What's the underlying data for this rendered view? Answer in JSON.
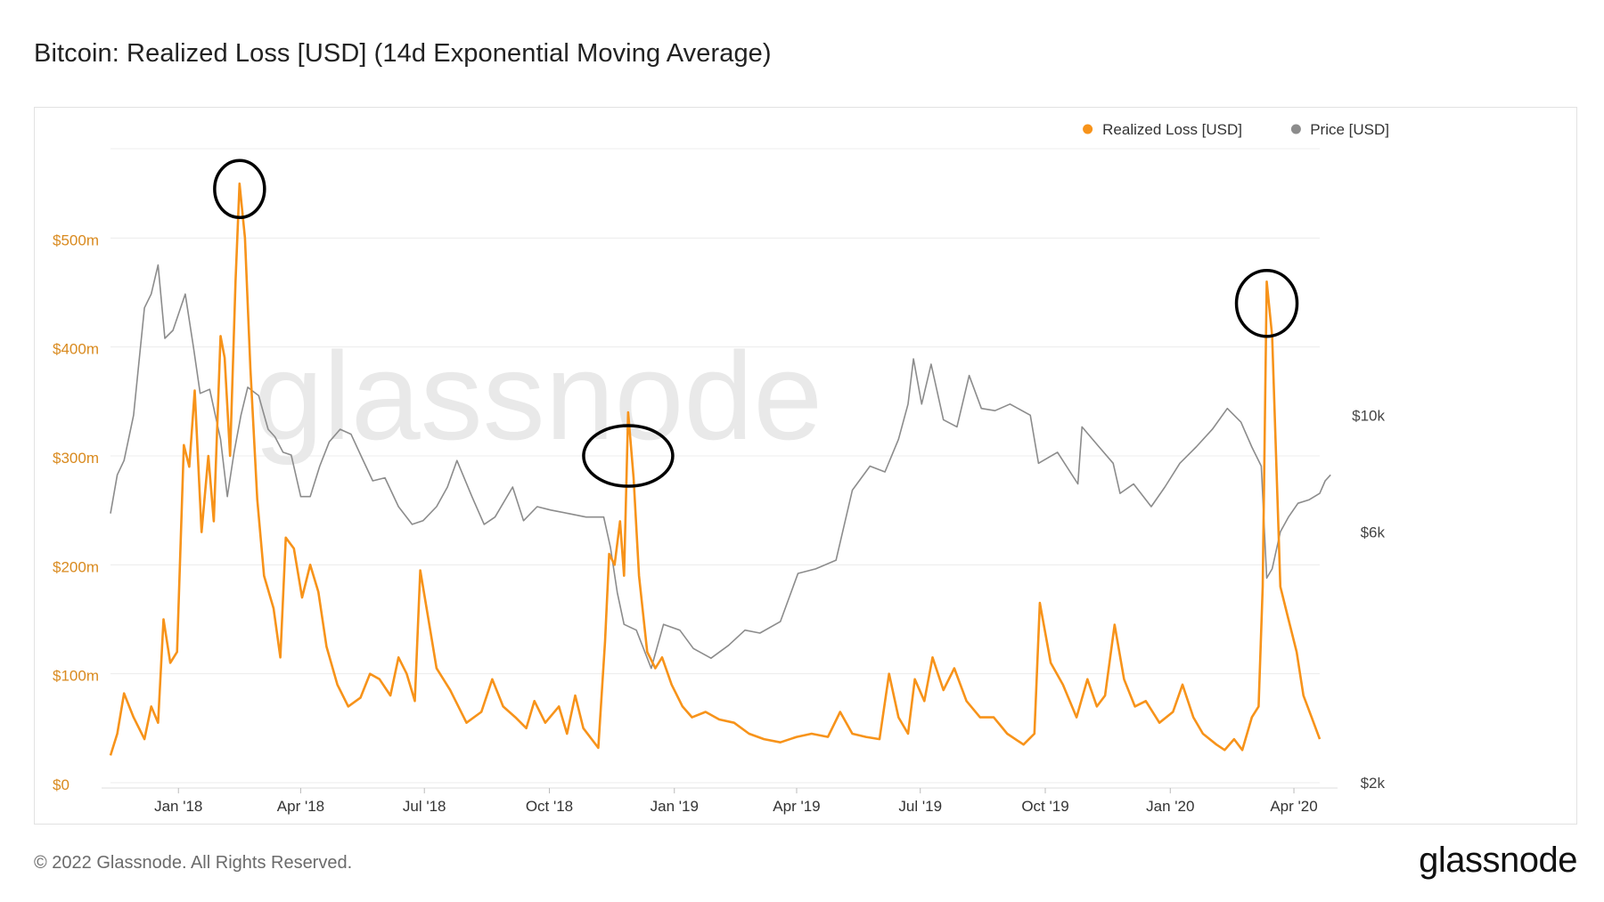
{
  "title": "Bitcoin: Realized Loss [USD] (14d Exponential Moving Average)",
  "footer": "© 2022 Glassnode. All Rights Reserved.",
  "brand": "glassnode",
  "watermark": "glassnode",
  "colors": {
    "loss": "#f7931a",
    "price": "#8c8c8c",
    "grid": "#ececec",
    "annotation": "#000000"
  },
  "chart_data": {
    "type": "line",
    "title": "Bitcoin: Realized Loss [USD] (14d Exponential Moving Average)",
    "x_ticks": [
      "Jan '18",
      "Apr '18",
      "Jul '18",
      "Oct '18",
      "Jan '19",
      "Apr '19",
      "Jul '19",
      "Oct '19",
      "Jan '20",
      "Apr '20"
    ],
    "x_range": [
      "2017-11-12",
      "2020-04-20"
    ],
    "y_left": {
      "label": "",
      "ticks": [
        "$0",
        "$100m",
        "$200m",
        "$300m",
        "$400m",
        "$500m"
      ],
      "range": [
        0,
        600
      ],
      "unit": "USD millions"
    },
    "y_right": {
      "label": "",
      "ticks": [
        "$2k",
        "$6k",
        "$10k"
      ],
      "scale": "log",
      "range": [
        2000,
        35000
      ],
      "unit": "USD"
    },
    "legend": {
      "position": "top-right",
      "entries": [
        "Realized Loss [USD]",
        "Price [USD]"
      ]
    },
    "grid": true,
    "series": [
      {
        "name": "Realized Loss [USD]",
        "axis": "left",
        "points": [
          [
            "2017-11-12",
            25
          ],
          [
            "2017-11-17",
            45
          ],
          [
            "2017-11-22",
            82
          ],
          [
            "2017-11-29",
            60
          ],
          [
            "2017-12-07",
            40
          ],
          [
            "2017-12-12",
            70
          ],
          [
            "2017-12-17",
            55
          ],
          [
            "2017-12-21",
            150
          ],
          [
            "2017-12-26",
            110
          ],
          [
            "2017-12-31",
            120
          ],
          [
            "2018-01-05",
            310
          ],
          [
            "2018-01-09",
            290
          ],
          [
            "2018-01-13",
            360
          ],
          [
            "2018-01-18",
            230
          ],
          [
            "2018-01-23",
            300
          ],
          [
            "2018-01-27",
            240
          ],
          [
            "2018-02-01",
            410
          ],
          [
            "2018-02-04",
            390
          ],
          [
            "2018-02-08",
            300
          ],
          [
            "2018-02-12",
            460
          ],
          [
            "2018-02-15",
            550
          ],
          [
            "2018-02-19",
            500
          ],
          [
            "2018-02-23",
            380
          ],
          [
            "2018-02-28",
            260
          ],
          [
            "2018-03-05",
            190
          ],
          [
            "2018-03-12",
            160
          ],
          [
            "2018-03-17",
            115
          ],
          [
            "2018-03-21",
            225
          ],
          [
            "2018-03-27",
            215
          ],
          [
            "2018-04-02",
            170
          ],
          [
            "2018-04-08",
            200
          ],
          [
            "2018-04-14",
            175
          ],
          [
            "2018-04-20",
            125
          ],
          [
            "2018-04-28",
            90
          ],
          [
            "2018-05-06",
            70
          ],
          [
            "2018-05-15",
            78
          ],
          [
            "2018-05-22",
            100
          ],
          [
            "2018-05-29",
            95
          ],
          [
            "2018-06-06",
            80
          ],
          [
            "2018-06-12",
            115
          ],
          [
            "2018-06-18",
            100
          ],
          [
            "2018-06-24",
            75
          ],
          [
            "2018-06-28",
            195
          ],
          [
            "2018-07-04",
            150
          ],
          [
            "2018-07-10",
            105
          ],
          [
            "2018-07-20",
            85
          ],
          [
            "2018-08-01",
            55
          ],
          [
            "2018-08-12",
            65
          ],
          [
            "2018-08-20",
            95
          ],
          [
            "2018-08-28",
            70
          ],
          [
            "2018-09-06",
            60
          ],
          [
            "2018-09-14",
            50
          ],
          [
            "2018-09-20",
            75
          ],
          [
            "2018-09-28",
            55
          ],
          [
            "2018-10-08",
            70
          ],
          [
            "2018-10-14",
            45
          ],
          [
            "2018-10-20",
            80
          ],
          [
            "2018-10-26",
            50
          ],
          [
            "2018-11-06",
            32
          ],
          [
            "2018-11-11",
            130
          ],
          [
            "2018-11-14",
            210
          ],
          [
            "2018-11-18",
            200
          ],
          [
            "2018-11-22",
            240
          ],
          [
            "2018-11-25",
            190
          ],
          [
            "2018-11-28",
            340
          ],
          [
            "2018-12-02",
            280
          ],
          [
            "2018-12-06",
            190
          ],
          [
            "2018-12-12",
            120
          ],
          [
            "2018-12-18",
            105
          ],
          [
            "2018-12-23",
            115
          ],
          [
            "2018-12-30",
            90
          ],
          [
            "2019-01-07",
            70
          ],
          [
            "2019-01-14",
            60
          ],
          [
            "2019-01-24",
            65
          ],
          [
            "2019-02-03",
            58
          ],
          [
            "2019-02-14",
            55
          ],
          [
            "2019-02-25",
            45
          ],
          [
            "2019-03-08",
            40
          ],
          [
            "2019-03-20",
            37
          ],
          [
            "2019-04-01",
            42
          ],
          [
            "2019-04-12",
            45
          ],
          [
            "2019-04-24",
            42
          ],
          [
            "2019-05-03",
            65
          ],
          [
            "2019-05-12",
            45
          ],
          [
            "2019-05-22",
            42
          ],
          [
            "2019-06-01",
            40
          ],
          [
            "2019-06-08",
            100
          ],
          [
            "2019-06-15",
            60
          ],
          [
            "2019-06-22",
            45
          ],
          [
            "2019-06-27",
            95
          ],
          [
            "2019-07-04",
            75
          ],
          [
            "2019-07-10",
            115
          ],
          [
            "2019-07-18",
            85
          ],
          [
            "2019-07-26",
            105
          ],
          [
            "2019-08-04",
            75
          ],
          [
            "2019-08-14",
            60
          ],
          [
            "2019-08-24",
            60
          ],
          [
            "2019-09-03",
            45
          ],
          [
            "2019-09-15",
            35
          ],
          [
            "2019-09-23",
            45
          ],
          [
            "2019-09-27",
            165
          ],
          [
            "2019-10-05",
            110
          ],
          [
            "2019-10-14",
            90
          ],
          [
            "2019-10-24",
            60
          ],
          [
            "2019-11-01",
            95
          ],
          [
            "2019-11-08",
            70
          ],
          [
            "2019-11-14",
            80
          ],
          [
            "2019-11-21",
            145
          ],
          [
            "2019-11-28",
            95
          ],
          [
            "2019-12-06",
            70
          ],
          [
            "2019-12-14",
            75
          ],
          [
            "2019-12-24",
            55
          ],
          [
            "2020-01-03",
            65
          ],
          [
            "2020-01-10",
            90
          ],
          [
            "2020-01-18",
            60
          ],
          [
            "2020-01-25",
            45
          ],
          [
            "2020-02-04",
            35
          ],
          [
            "2020-02-10",
            30
          ],
          [
            "2020-02-17",
            40
          ],
          [
            "2020-02-23",
            30
          ],
          [
            "2020-03-01",
            60
          ],
          [
            "2020-03-06",
            70
          ],
          [
            "2020-03-09",
            180
          ],
          [
            "2020-03-12",
            460
          ],
          [
            "2020-03-16",
            410
          ],
          [
            "2020-03-22",
            180
          ],
          [
            "2020-03-28",
            150
          ],
          [
            "2020-04-03",
            120
          ],
          [
            "2020-04-08",
            80
          ],
          [
            "2020-04-14",
            60
          ],
          [
            "2020-04-20",
            40
          ]
        ]
      },
      {
        "name": "Price [USD]",
        "axis": "right",
        "points": [
          [
            "2017-11-12",
            6500
          ],
          [
            "2017-11-17",
            7700
          ],
          [
            "2017-11-22",
            8200
          ],
          [
            "2017-11-29",
            10000
          ],
          [
            "2017-12-07",
            16000
          ],
          [
            "2017-12-12",
            17000
          ],
          [
            "2017-12-17",
            19300
          ],
          [
            "2017-12-22",
            14000
          ],
          [
            "2017-12-28",
            14500
          ],
          [
            "2018-01-06",
            17000
          ],
          [
            "2018-01-12",
            13500
          ],
          [
            "2018-01-17",
            11000
          ],
          [
            "2018-01-24",
            11200
          ],
          [
            "2018-02-01",
            9000
          ],
          [
            "2018-02-06",
            7000
          ],
          [
            "2018-02-11",
            8500
          ],
          [
            "2018-02-16",
            10000
          ],
          [
            "2018-02-21",
            11300
          ],
          [
            "2018-03-01",
            10900
          ],
          [
            "2018-03-08",
            9400
          ],
          [
            "2018-03-13",
            9100
          ],
          [
            "2018-03-19",
            8500
          ],
          [
            "2018-03-25",
            8400
          ],
          [
            "2018-04-01",
            7000
          ],
          [
            "2018-04-08",
            7000
          ],
          [
            "2018-04-15",
            8000
          ],
          [
            "2018-04-22",
            8900
          ],
          [
            "2018-04-30",
            9400
          ],
          [
            "2018-05-08",
            9200
          ],
          [
            "2018-05-16",
            8300
          ],
          [
            "2018-05-24",
            7500
          ],
          [
            "2018-06-02",
            7600
          ],
          [
            "2018-06-12",
            6700
          ],
          [
            "2018-06-22",
            6200
          ],
          [
            "2018-06-30",
            6300
          ],
          [
            "2018-07-10",
            6700
          ],
          [
            "2018-07-18",
            7300
          ],
          [
            "2018-07-25",
            8200
          ],
          [
            "2018-08-05",
            7000
          ],
          [
            "2018-08-14",
            6200
          ],
          [
            "2018-08-22",
            6400
          ],
          [
            "2018-09-04",
            7300
          ],
          [
            "2018-09-12",
            6300
          ],
          [
            "2018-09-22",
            6700
          ],
          [
            "2018-10-02",
            6600
          ],
          [
            "2018-10-15",
            6500
          ],
          [
            "2018-10-28",
            6400
          ],
          [
            "2018-11-10",
            6400
          ],
          [
            "2018-11-15",
            5600
          ],
          [
            "2018-11-20",
            4600
          ],
          [
            "2018-11-25",
            4000
          ],
          [
            "2018-12-04",
            3900
          ],
          [
            "2018-12-15",
            3300
          ],
          [
            "2018-12-24",
            4000
          ],
          [
            "2019-01-05",
            3900
          ],
          [
            "2019-01-15",
            3600
          ],
          [
            "2019-01-28",
            3450
          ],
          [
            "2019-02-10",
            3650
          ],
          [
            "2019-02-22",
            3900
          ],
          [
            "2019-03-05",
            3850
          ],
          [
            "2019-03-20",
            4050
          ],
          [
            "2019-04-02",
            5000
          ],
          [
            "2019-04-15",
            5100
          ],
          [
            "2019-04-30",
            5300
          ],
          [
            "2019-05-12",
            7200
          ],
          [
            "2019-05-25",
            8000
          ],
          [
            "2019-06-05",
            7800
          ],
          [
            "2019-06-15",
            9000
          ],
          [
            "2019-06-22",
            10500
          ],
          [
            "2019-06-26",
            12800
          ],
          [
            "2019-07-02",
            10500
          ],
          [
            "2019-07-09",
            12500
          ],
          [
            "2019-07-18",
            9800
          ],
          [
            "2019-07-28",
            9500
          ],
          [
            "2019-08-06",
            11900
          ],
          [
            "2019-08-15",
            10300
          ],
          [
            "2019-08-25",
            10200
          ],
          [
            "2019-09-05",
            10500
          ],
          [
            "2019-09-20",
            10000
          ],
          [
            "2019-09-26",
            8100
          ],
          [
            "2019-10-10",
            8500
          ],
          [
            "2019-10-25",
            7400
          ],
          [
            "2019-10-28",
            9500
          ],
          [
            "2019-11-08",
            8800
          ],
          [
            "2019-11-20",
            8100
          ],
          [
            "2019-11-25",
            7100
          ],
          [
            "2019-12-05",
            7400
          ],
          [
            "2019-12-18",
            6700
          ],
          [
            "2019-12-28",
            7300
          ],
          [
            "2020-01-08",
            8100
          ],
          [
            "2020-01-20",
            8700
          ],
          [
            "2020-02-01",
            9400
          ],
          [
            "2020-02-12",
            10300
          ],
          [
            "2020-02-22",
            9700
          ],
          [
            "2020-03-01",
            8700
          ],
          [
            "2020-03-08",
            8000
          ],
          [
            "2020-03-12",
            4900
          ],
          [
            "2020-03-16",
            5100
          ],
          [
            "2020-03-22",
            6000
          ],
          [
            "2020-03-28",
            6400
          ],
          [
            "2020-04-04",
            6800
          ],
          [
            "2020-04-12",
            6900
          ],
          [
            "2020-04-20",
            7100
          ],
          [
            "2020-04-24",
            7500
          ],
          [
            "2020-04-28",
            7700
          ]
        ]
      }
    ],
    "annotations": [
      {
        "type": "circle",
        "at": [
          "2018-02-15",
          545
        ]
      },
      {
        "type": "circle",
        "at": [
          "2018-11-28",
          300
        ]
      },
      {
        "type": "circle",
        "at": [
          "2020-03-12",
          440
        ]
      }
    ]
  }
}
